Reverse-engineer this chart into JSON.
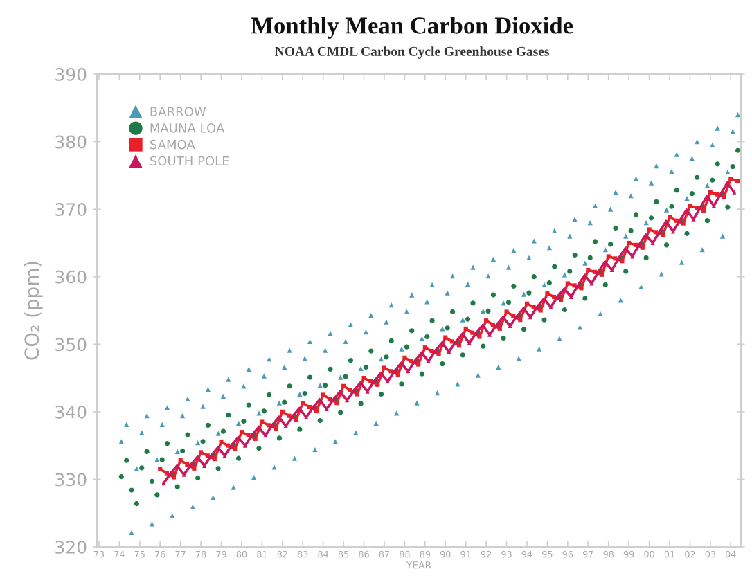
{
  "chart_data": {
    "type": "scatter",
    "title": "Monthly Mean Carbon Dioxide",
    "subtitle": "NOAA CMDL Carbon Cycle Greenhouse Gases",
    "xlabel": "YEAR",
    "ylabel": "CO₂ (ppm)",
    "x": [
      1974.1,
      1974.35,
      1974.6,
      1974.85,
      1975.1,
      1975.35,
      1975.6,
      1975.85,
      1976.1,
      1976.35,
      1976.6,
      1976.85,
      1977.1,
      1977.35,
      1977.6,
      1977.85,
      1978.1,
      1978.35,
      1978.6,
      1978.85,
      1979.1,
      1979.35,
      1979.6,
      1979.85,
      1980.1,
      1980.35,
      1980.6,
      1980.85,
      1981.1,
      1981.35,
      1981.6,
      1981.85,
      1982.1,
      1982.35,
      1982.6,
      1982.85,
      1983.1,
      1983.35,
      1983.6,
      1983.85,
      1984.1,
      1984.35,
      1984.6,
      1984.85,
      1985.1,
      1985.35,
      1985.6,
      1985.85,
      1986.1,
      1986.35,
      1986.6,
      1986.85,
      1987.1,
      1987.35,
      1987.6,
      1987.85,
      1988.1,
      1988.35,
      1988.6,
      1988.85,
      1989.1,
      1989.35,
      1989.6,
      1989.85,
      1990.1,
      1990.35,
      1990.6,
      1990.85,
      1991.1,
      1991.35,
      1991.6,
      1991.85,
      1992.1,
      1992.35,
      1992.6,
      1992.85,
      1993.1,
      1993.35,
      1993.6,
      1993.85,
      1994.1,
      1994.35,
      1994.6,
      1994.85,
      1995.1,
      1995.35,
      1995.6,
      1995.85,
      1996.1,
      1996.35,
      1996.6,
      1996.85,
      1997.1,
      1997.35,
      1997.6,
      1997.85,
      1998.1,
      1998.35,
      1998.6,
      1998.85,
      1999.1,
      1999.35,
      1999.6,
      1999.85,
      2000.1,
      2000.35,
      2000.6,
      2000.85,
      2001.1,
      2001.35,
      2001.6,
      2001.85,
      2002.1,
      2002.35,
      2002.6,
      2002.85,
      2003.1,
      2003.35,
      2003.6,
      2003.85,
      2004.1,
      2004.35
    ],
    "series": [
      {
        "name": "BARROW",
        "color": "#4a9bb5",
        "marker": "triangle",
        "values": [
          335.6,
          338.1,
          322.1,
          331.6,
          336.9,
          339.4,
          323.4,
          332.9,
          338.1,
          340.6,
          324.6,
          334.1,
          339.4,
          341.9,
          325.9,
          335.4,
          340.8,
          343.3,
          327.3,
          336.8,
          342.3,
          344.8,
          328.8,
          338.3,
          343.8,
          346.3,
          330.3,
          339.8,
          345.3,
          347.8,
          331.8,
          341.3,
          346.6,
          349.1,
          333.1,
          342.6,
          347.9,
          350.4,
          334.4,
          343.9,
          349.1,
          351.6,
          335.6,
          345.1,
          350.4,
          352.9,
          336.9,
          346.4,
          351.8,
          354.3,
          338.3,
          347.8,
          353.3,
          355.8,
          339.8,
          349.3,
          354.8,
          357.3,
          341.3,
          350.8,
          356.3,
          358.8,
          342.8,
          352.3,
          357.6,
          360.1,
          344.1,
          353.6,
          358.9,
          361.4,
          345.4,
          354.9,
          360.1,
          362.6,
          346.6,
          356.1,
          361.4,
          363.9,
          347.9,
          357.4,
          362.8,
          365.3,
          349.3,
          358.8,
          364.3,
          366.8,
          350.8,
          360.3,
          366.0,
          368.5,
          352.5,
          362.0,
          368.0,
          370.5,
          354.5,
          364.0,
          370.0,
          372.5,
          356.5,
          366.0,
          372.0,
          374.5,
          358.5,
          368.0,
          373.9,
          376.4,
          360.4,
          369.9,
          375.6,
          378.1,
          362.1,
          371.6,
          377.5,
          380.0,
          364.0,
          373.5,
          379.5,
          382.0,
          366.0,
          375.5,
          381.5,
          384.0
        ]
      },
      {
        "name": "MAUNA LOA",
        "color": "#1f7a48",
        "marker": "circle",
        "values": [
          330.4,
          332.8,
          328.4,
          326.4,
          331.7,
          334.1,
          329.7,
          327.7,
          332.9,
          335.3,
          330.9,
          328.9,
          334.2,
          336.6,
          332.2,
          330.2,
          335.6,
          338.0,
          333.6,
          331.6,
          337.1,
          339.5,
          335.1,
          333.1,
          338.6,
          341.0,
          336.6,
          334.6,
          340.1,
          342.5,
          338.1,
          336.1,
          341.4,
          343.8,
          339.4,
          337.4,
          342.7,
          345.1,
          340.7,
          338.7,
          343.9,
          346.3,
          341.9,
          339.9,
          345.2,
          347.6,
          343.2,
          341.2,
          346.6,
          349.0,
          344.6,
          342.6,
          348.1,
          350.5,
          346.1,
          344.1,
          349.6,
          352.0,
          347.6,
          345.6,
          351.1,
          353.5,
          349.1,
          347.1,
          352.4,
          354.8,
          350.4,
          348.4,
          353.7,
          356.1,
          351.7,
          349.7,
          354.9,
          357.3,
          352.9,
          350.9,
          356.2,
          358.6,
          354.2,
          352.2,
          357.6,
          360.0,
          355.6,
          353.6,
          359.1,
          361.5,
          357.1,
          355.1,
          360.8,
          363.2,
          358.8,
          356.8,
          362.8,
          365.2,
          360.8,
          358.8,
          364.8,
          367.2,
          362.8,
          360.8,
          366.8,
          369.2,
          364.8,
          362.8,
          368.7,
          371.1,
          366.7,
          364.7,
          370.4,
          372.8,
          368.4,
          366.4,
          372.3,
          374.7,
          370.3,
          368.3,
          374.3,
          376.7,
          372.3,
          370.3,
          376.3,
          378.7
        ]
      },
      {
        "name": "SAMOA",
        "color": "#e8202a",
        "marker": "square",
        "type": "line",
        "line_style": "solid",
        "x": [
          1976.0,
          1976.33,
          1976.67,
          1977.0,
          1977.33,
          1977.67,
          1978.0,
          1978.33,
          1978.67,
          1979.0,
          1979.33,
          1979.67,
          1980.0,
          1980.33,
          1980.67,
          1981.0,
          1981.33,
          1981.67,
          1982.0,
          1982.33,
          1982.67,
          1983.0,
          1983.33,
          1983.67,
          1984.0,
          1984.33,
          1984.67,
          1985.0,
          1985.33,
          1985.67,
          1986.0,
          1986.33,
          1986.67,
          1987.0,
          1987.33,
          1987.67,
          1988.0,
          1988.33,
          1988.67,
          1989.0,
          1989.33,
          1989.67,
          1990.0,
          1990.33,
          1990.67,
          1991.0,
          1991.33,
          1991.67,
          1992.0,
          1992.33,
          1992.67,
          1993.0,
          1993.33,
          1993.67,
          1994.0,
          1994.33,
          1994.67,
          1995.0,
          1995.33,
          1995.67,
          1996.0,
          1996.33,
          1996.67,
          1997.0,
          1997.33,
          1997.67,
          1998.0,
          1998.33,
          1998.67,
          1999.0,
          1999.33,
          1999.67,
          2000.0,
          2000.33,
          2000.67,
          2001.0,
          2001.33,
          2001.67,
          2002.0,
          2002.33,
          2002.67,
          2003.0,
          2003.33,
          2003.67,
          2004.0,
          2004.33
        ],
        "values": [
          331.5,
          330.9,
          330.3,
          332.8,
          332.2,
          331.6,
          334.0,
          333.5,
          333.0,
          335.5,
          335.0,
          334.5,
          337.0,
          336.5,
          336.0,
          338.5,
          338.0,
          337.5,
          340.0,
          339.4,
          338.8,
          341.3,
          340.7,
          340.1,
          342.5,
          341.9,
          341.3,
          343.8,
          343.2,
          342.6,
          345.0,
          344.5,
          344.0,
          346.5,
          346.0,
          345.5,
          348.0,
          347.5,
          347.0,
          349.5,
          349.0,
          348.5,
          351.0,
          350.4,
          349.8,
          352.3,
          351.7,
          351.1,
          353.5,
          352.9,
          352.3,
          354.8,
          354.2,
          353.6,
          356.0,
          355.5,
          355.0,
          357.5,
          357.0,
          356.5,
          359.0,
          358.7,
          358.3,
          361.0,
          360.7,
          360.3,
          363.0,
          362.7,
          362.3,
          365.0,
          364.7,
          364.3,
          367.0,
          366.6,
          366.2,
          368.8,
          368.3,
          367.9,
          370.5,
          370.2,
          369.8,
          372.5,
          372.2,
          371.8,
          374.5,
          374.2
        ]
      },
      {
        "name": "SOUTH POLE",
        "color": "#c8195f",
        "marker": "triangle",
        "type": "line",
        "line_style": "solid",
        "x": [
          1976.17,
          1976.5,
          1976.83,
          1977.17,
          1977.5,
          1977.83,
          1978.17,
          1978.5,
          1978.83,
          1979.17,
          1979.5,
          1979.83,
          1980.17,
          1980.5,
          1980.83,
          1981.17,
          1981.5,
          1981.83,
          1982.17,
          1982.5,
          1982.83,
          1983.17,
          1983.5,
          1983.83,
          1984.17,
          1984.5,
          1984.83,
          1985.17,
          1985.5,
          1985.83,
          1986.17,
          1986.5,
          1986.83,
          1987.17,
          1987.5,
          1987.83,
          1988.17,
          1988.5,
          1988.83,
          1989.17,
          1989.5,
          1989.83,
          1990.17,
          1990.5,
          1990.83,
          1991.17,
          1991.5,
          1991.83,
          1992.17,
          1992.5,
          1992.83,
          1993.17,
          1993.5,
          1993.83,
          1994.17,
          1994.5,
          1994.83,
          1995.17,
          1995.5,
          1995.83,
          1996.17,
          1996.5,
          1996.83,
          1997.17,
          1997.5,
          1997.83,
          1998.17,
          1998.5,
          1998.83,
          1999.17,
          1999.5,
          1999.83,
          2000.17,
          2000.5,
          2000.83,
          2001.17,
          2001.5,
          2001.83,
          2002.17,
          2002.5,
          2002.83,
          2003.17,
          2003.5,
          2003.83,
          2004.17
        ],
        "values": [
          329.4,
          330.8,
          332.0,
          330.7,
          332.1,
          333.3,
          332.0,
          333.5,
          334.7,
          333.5,
          335.0,
          336.2,
          335.0,
          336.5,
          337.7,
          336.5,
          338.0,
          339.2,
          337.9,
          339.3,
          340.5,
          339.2,
          340.6,
          341.8,
          340.4,
          341.8,
          343.0,
          341.7,
          343.1,
          344.3,
          343.0,
          344.5,
          345.7,
          344.5,
          346.0,
          347.2,
          346.0,
          347.5,
          348.7,
          347.5,
          349.0,
          350.2,
          348.9,
          350.3,
          351.5,
          350.2,
          351.6,
          352.8,
          351.4,
          352.8,
          354.0,
          352.7,
          354.1,
          355.3,
          354.0,
          355.5,
          356.7,
          355.5,
          357.0,
          358.2,
          357.0,
          358.7,
          360.2,
          359.0,
          360.7,
          362.2,
          361.0,
          362.7,
          364.2,
          363.0,
          364.7,
          366.2,
          365.0,
          366.6,
          368.2,
          366.7,
          368.3,
          369.9,
          368.5,
          370.2,
          371.9,
          370.5,
          372.2,
          373.9,
          372.5
        ]
      }
    ],
    "xlim": [
      1972.9,
      2004.5
    ],
    "xticks": [
      {
        "value": 1973,
        "label": "73"
      },
      {
        "value": 1974,
        "label": "74"
      },
      {
        "value": 1975,
        "label": "75"
      },
      {
        "value": 1976,
        "label": "76"
      },
      {
        "value": 1977,
        "label": "77"
      },
      {
        "value": 1978,
        "label": "78"
      },
      {
        "value": 1979,
        "label": "79"
      },
      {
        "value": 1980,
        "label": "80"
      },
      {
        "value": 1981,
        "label": "81"
      },
      {
        "value": 1982,
        "label": "82"
      },
      {
        "value": 1983,
        "label": "83"
      },
      {
        "value": 1984,
        "label": "84"
      },
      {
        "value": 1985,
        "label": "85"
      },
      {
        "value": 1986,
        "label": "86"
      },
      {
        "value": 1987,
        "label": "87"
      },
      {
        "value": 1988,
        "label": "88"
      },
      {
        "value": 1989,
        "label": "89"
      },
      {
        "value": 1990,
        "label": "90"
      },
      {
        "value": 1991,
        "label": "91"
      },
      {
        "value": 1992,
        "label": "92"
      },
      {
        "value": 1993,
        "label": "93"
      },
      {
        "value": 1994,
        "label": "94"
      },
      {
        "value": 1995,
        "label": "95"
      },
      {
        "value": 1996,
        "label": "96"
      },
      {
        "value": 1997,
        "label": "97"
      },
      {
        "value": 1998,
        "label": "98"
      },
      {
        "value": 1999,
        "label": "99"
      },
      {
        "value": 2000,
        "label": "00"
      },
      {
        "value": 2001,
        "label": "01"
      },
      {
        "value": 2002,
        "label": "02"
      },
      {
        "value": 2003,
        "label": "03"
      },
      {
        "value": 2004,
        "label": "04"
      }
    ],
    "ylim": [
      320,
      390
    ],
    "yticks": [
      320,
      330,
      340,
      350,
      360,
      370,
      380,
      390
    ],
    "legend": "top left"
  }
}
